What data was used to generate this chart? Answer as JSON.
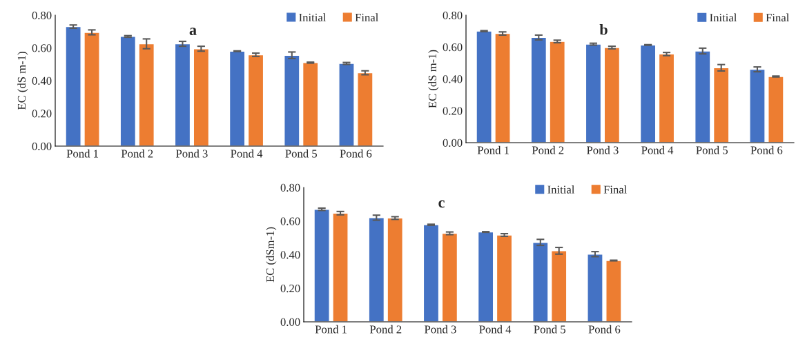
{
  "chart_data": [
    {
      "type": "bar",
      "title": "a",
      "ylabel": "EC (dS m-1)",
      "categories": [
        "Pond 1",
        "Pond 2",
        "Pond 3",
        "Pond 4",
        "Pond 5",
        "Pond 6"
      ],
      "series": [
        {
          "name": "Initial",
          "color": "#4472c4",
          "values": [
            0.73,
            0.67,
            0.625,
            0.58,
            0.555,
            0.505
          ],
          "errors": [
            0.01,
            0.005,
            0.015,
            0.002,
            0.02,
            0.006
          ]
        },
        {
          "name": "Final",
          "color": "#ed7d31",
          "values": [
            0.695,
            0.625,
            0.595,
            0.558,
            0.51,
            0.448
          ],
          "errors": [
            0.015,
            0.03,
            0.015,
            0.01,
            0.003,
            0.012
          ]
        }
      ],
      "ylim": [
        0,
        0.8
      ],
      "yticks": [
        {
          "value": 0,
          "label": "0.00"
        },
        {
          "value": 0.2,
          "label": "0.20"
        },
        {
          "value": 0.4,
          "label": "0.40"
        },
        {
          "value": 0.6,
          "label": "0.60"
        },
        {
          "value": 0.8,
          "label": "0.80"
        }
      ],
      "grid": false,
      "legend": "top right"
    },
    {
      "type": "bar",
      "title": "b",
      "ylabel": "EC (dS m-1)",
      "categories": [
        "Pond 1",
        "Pond 2",
        "Pond 3",
        "Pond 4",
        "Pond 5",
        "Pond 6"
      ],
      "series": [
        {
          "name": "Initial",
          "color": "#4472c4",
          "values": [
            0.7,
            0.66,
            0.618,
            0.613,
            0.575,
            0.46
          ],
          "errors": [
            0.003,
            0.015,
            0.006,
            0.002,
            0.018,
            0.015
          ]
        },
        {
          "name": "Final",
          "color": "#ed7d31",
          "values": [
            0.685,
            0.635,
            0.597,
            0.556,
            0.47,
            0.415
          ],
          "errors": [
            0.01,
            0.008,
            0.008,
            0.01,
            0.02,
            0.003
          ]
        }
      ],
      "ylim": [
        0,
        0.8
      ],
      "yticks": [
        {
          "value": 0,
          "label": "0.00"
        },
        {
          "value": 0.2,
          "label": "0.20"
        },
        {
          "value": 0.4,
          "label": "0.40"
        },
        {
          "value": 0.6,
          "label": "0.60"
        },
        {
          "value": 0.8,
          "label": "0.80"
        }
      ],
      "grid": false,
      "legend": "top right"
    },
    {
      "type": "bar",
      "title": "c",
      "ylabel": "EC (dSm-1)",
      "categories": [
        "Pond 1",
        "Pond 2",
        "Pond 3",
        "Pond 4",
        "Pond 5",
        "Pond 6"
      ],
      "series": [
        {
          "name": "Initial",
          "color": "#4472c4",
          "values": [
            0.67,
            0.62,
            0.578,
            0.535,
            0.473,
            0.403
          ],
          "errors": [
            0.007,
            0.015,
            0.003,
            0.002,
            0.018,
            0.015
          ]
        },
        {
          "name": "Final",
          "color": "#ed7d31",
          "values": [
            0.647,
            0.618,
            0.527,
            0.517,
            0.423,
            0.365
          ],
          "errors": [
            0.01,
            0.008,
            0.008,
            0.008,
            0.02,
            0.002
          ]
        }
      ],
      "ylim": [
        0,
        0.8
      ],
      "yticks": [
        {
          "value": 0,
          "label": "0.00"
        },
        {
          "value": 0.2,
          "label": "0.20"
        },
        {
          "value": 0.4,
          "label": "0.40"
        },
        {
          "value": 0.6,
          "label": "0.60"
        },
        {
          "value": 0.8,
          "label": "0.80"
        }
      ],
      "grid": false,
      "legend": "top right"
    }
  ]
}
